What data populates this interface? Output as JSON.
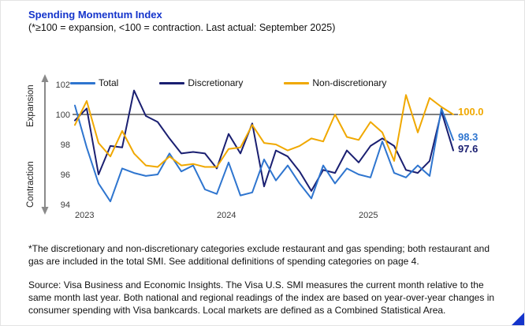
{
  "accent_color": "#1434CB",
  "header": {
    "title": "Spending Momentum Index",
    "subtitle": "(*≥100 = expansion, <100 = contraction. Last actual: September 2025)"
  },
  "chart_data": {
    "type": "line",
    "title": "Spending Momentum Index",
    "legend_position": "top",
    "grid": false,
    "reference_line": 100,
    "y_axis": {
      "ticks": [
        94,
        96,
        98,
        100,
        102
      ],
      "range": [
        94,
        102
      ],
      "top_label": "Expansion",
      "bottom_label": "Contraction"
    },
    "x_year_labels": [
      "2023",
      "2024",
      "2025"
    ],
    "year_label_indices": [
      0,
      12,
      24
    ],
    "x_months": [
      "Jan 2023",
      "Feb 2023",
      "Mar 2023",
      "Apr 2023",
      "May 2023",
      "Jun 2023",
      "Jul 2023",
      "Aug 2023",
      "Sep 2023",
      "Oct 2023",
      "Nov 2023",
      "Dec 2023",
      "Jan 2024",
      "Feb 2024",
      "Mar 2024",
      "Apr 2024",
      "May 2024",
      "Jun 2024",
      "Jul 2024",
      "Aug 2024",
      "Sep 2024",
      "Oct 2024",
      "Nov 2024",
      "Dec 2024",
      "Jan 2025",
      "Feb 2025",
      "Mar 2025",
      "Apr 2025",
      "May 2025",
      "Jun 2025",
      "Jul 2025",
      "Aug 2025",
      "Sep 2025"
    ],
    "series": [
      {
        "name": "Discretionary",
        "color": "#1A1F71",
        "values": [
          99.6,
          100.4,
          96.0,
          97.9,
          97.8,
          101.6,
          99.9,
          99.5,
          98.4,
          97.4,
          97.5,
          97.4,
          96.4,
          98.7,
          97.4,
          99.4,
          95.2,
          97.6,
          97.2,
          96.2,
          94.9,
          96.3,
          96.1,
          97.6,
          96.8,
          97.9,
          98.4,
          97.9,
          96.3,
          96.1,
          96.9,
          100.2,
          97.6
        ]
      },
      {
        "name": "Total",
        "color": "#2E75CF",
        "values": [
          100.6,
          97.8,
          95.4,
          94.2,
          96.4,
          96.1,
          95.9,
          96.0,
          97.4,
          96.2,
          96.6,
          95.0,
          94.7,
          96.8,
          94.6,
          94.8,
          97.0,
          95.6,
          96.6,
          95.4,
          94.4,
          96.6,
          95.4,
          96.4,
          96.0,
          95.8,
          98.2,
          96.1,
          95.8,
          96.6,
          95.9,
          100.4,
          98.3
        ]
      },
      {
        "name": "Non-discretionary",
        "color": "#F0A800",
        "values": [
          99.3,
          100.9,
          98.1,
          97.2,
          98.9,
          97.4,
          96.6,
          96.5,
          97.2,
          96.6,
          96.7,
          96.5,
          96.5,
          97.7,
          97.8,
          99.3,
          98.1,
          98.0,
          97.6,
          97.9,
          98.4,
          98.2,
          100.0,
          98.5,
          98.3,
          99.5,
          98.8,
          96.9,
          101.3,
          98.8,
          101.1,
          100.5,
          100.0
        ]
      }
    ],
    "legend_order": [
      "Total",
      "Discretionary",
      "Non-discretionary"
    ],
    "end_labels": [
      {
        "value": "100.0",
        "series": "Non-discretionary",
        "color": "#F0A800"
      },
      {
        "value": "98.3",
        "series": "Total",
        "color": "#2E75CF"
      },
      {
        "value": "97.6",
        "series": "Discretionary",
        "color": "#1A1F71"
      }
    ]
  },
  "legend": {
    "items": [
      {
        "label": "Total",
        "color": "#2E75CF"
      },
      {
        "label": "Discretionary",
        "color": "#1A1F71"
      },
      {
        "label": "Non-discretionary",
        "color": "#F0A800"
      }
    ]
  },
  "footnote": "*The discretionary and non-discretionary categories exclude restaurant and gas spending; both restaurant and gas are included in the total SMI. See additional definitions of spending categories on page 4.",
  "source": "Source: Visa Business and Economic Insights. The Visa U.S. SMI measures the current month relative to the same month last year. Both national and regional readings of the index are based on year-over-year changes in consumer spending with Visa bankcards. Local markets are defined as a Combined Statistical Area."
}
